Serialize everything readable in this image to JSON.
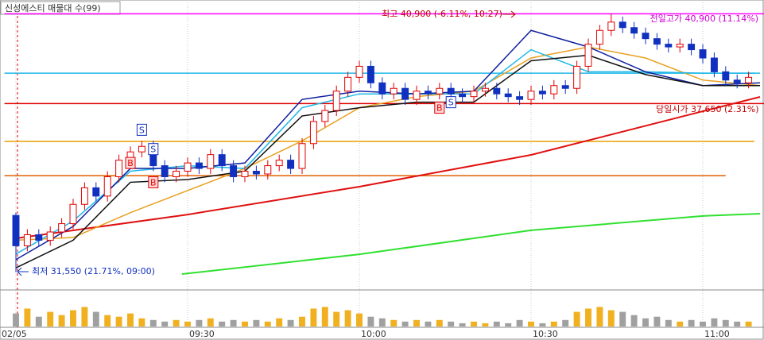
{
  "chart_data": {
    "type": "candlestick",
    "title": "신성에스티 매물대 수(99)",
    "annotations": [
      "최고 40,900 (-6.11%, 10:27)",
      "전일고가 40,900 (11.14%)",
      "당일시가 37,650 (2.31%)",
      "최저 31,550 (21.71%, 09:00)"
    ],
    "xlim": [
      -2,
      131
    ],
    "xticks": [
      {
        "value": 0,
        "label": "02/05"
      },
      {
        "value": 30,
        "label": "09:30"
      },
      {
        "value": 60,
        "label": "10:00"
      },
      {
        "value": 90,
        "label": "10:30"
      },
      {
        "value": 120,
        "label": "11:00"
      }
    ],
    "ylim": [
      30900,
      41400
    ],
    "x": [
      0,
      2,
      4,
      6,
      8,
      10,
      12,
      14,
      16,
      18,
      20,
      22,
      24,
      26,
      28,
      30,
      32,
      34,
      36,
      38,
      40,
      42,
      44,
      46,
      48,
      50,
      52,
      54,
      56,
      58,
      60,
      62,
      64,
      66,
      68,
      70,
      72,
      74,
      76,
      78,
      80,
      82,
      84,
      86,
      88,
      90,
      92,
      94,
      96,
      98,
      100,
      102,
      104,
      106,
      108,
      110,
      112,
      114,
      116,
      118,
      120,
      122,
      124,
      126,
      128
    ],
    "open": [
      33600,
      32500,
      32900,
      32700,
      33000,
      33300,
      34000,
      34600,
      34300,
      35000,
      35600,
      35900,
      36100,
      35400,
      35000,
      35200,
      35500,
      35300,
      35800,
      35400,
      35000,
      35200,
      35100,
      35400,
      35600,
      35300,
      36200,
      37000,
      37400,
      38100,
      38600,
      39000,
      38400,
      38000,
      38200,
      37800,
      38100,
      38000,
      38200,
      38000,
      37900,
      38100,
      38200,
      38000,
      37900,
      37800,
      38100,
      38000,
      38300,
      38200,
      39000,
      39800,
      40300,
      40600,
      40400,
      40200,
      40000,
      39800,
      39700,
      39800,
      39600,
      39300,
      38800,
      38500,
      38400
    ],
    "high": [
      33700,
      33100,
      33100,
      33200,
      33500,
      34200,
      34800,
      34800,
      35200,
      35800,
      36100,
      36300,
      36300,
      35600,
      35400,
      35700,
      35700,
      36000,
      36000,
      35600,
      35400,
      35400,
      35600,
      35800,
      35800,
      36400,
      37200,
      37600,
      38300,
      38800,
      39200,
      39200,
      38600,
      38400,
      38400,
      38300,
      38300,
      38400,
      38400,
      38200,
      38300,
      38400,
      38400,
      38200,
      38100,
      38300,
      38300,
      38500,
      38500,
      39200,
      40000,
      40500,
      40900,
      40800,
      40600,
      40400,
      40200,
      40000,
      40000,
      40000,
      39800,
      39500,
      39000,
      38700,
      38800
    ],
    "low": [
      31550,
      32300,
      32500,
      32500,
      32800,
      33100,
      33800,
      34100,
      34100,
      34800,
      35400,
      35700,
      35200,
      34800,
      34800,
      35000,
      35100,
      35100,
      35200,
      34800,
      34800,
      34900,
      34900,
      35200,
      35100,
      35100,
      36000,
      36800,
      37200,
      37900,
      38400,
      38200,
      37800,
      37800,
      37600,
      37600,
      37800,
      37800,
      37800,
      37700,
      37700,
      37900,
      37800,
      37700,
      37600,
      37600,
      37800,
      37800,
      38000,
      38000,
      38800,
      39600,
      40100,
      40200,
      40000,
      39800,
      39600,
      39500,
      39500,
      39400,
      39100,
      38600,
      38300,
      38200,
      38200
    ],
    "close": [
      32500,
      32900,
      32700,
      33000,
      33300,
      34000,
      34600,
      34300,
      35000,
      35600,
      35900,
      36100,
      35400,
      35000,
      35200,
      35500,
      35300,
      35800,
      35400,
      35000,
      35200,
      35100,
      35400,
      35600,
      35300,
      36200,
      37000,
      37400,
      38100,
      38600,
      39000,
      38400,
      38000,
      38200,
      37800,
      38100,
      38000,
      38200,
      38000,
      37900,
      38100,
      38200,
      38000,
      37900,
      37800,
      38100,
      38000,
      38300,
      38200,
      39000,
      39800,
      40300,
      40600,
      40400,
      40200,
      40000,
      39800,
      39700,
      39800,
      39600,
      39300,
      38800,
      38500,
      38400,
      38600
    ],
    "up_color": "#e00000",
    "down_color": "#1030c0",
    "series": [
      {
        "color": "#e01010",
        "x": [
          0,
          30,
          60,
          90,
          120,
          130
        ],
        "values": [
          32770,
          33630,
          34640,
          35790,
          37370,
          37890
        ]
      },
      {
        "color": "#30e030",
        "x": [
          29,
          60,
          90,
          120,
          130
        ],
        "values": [
          31475,
          32190,
          33060,
          33580,
          33660
        ]
      },
      {
        "color": "#e8a020",
        "x": [
          0,
          10,
          20,
          30,
          40,
          50,
          60,
          70,
          80,
          90,
          100,
          110,
          120,
          130
        ],
        "values": [
          32700,
          32800,
          33700,
          34500,
          35300,
          36300,
          37500,
          37900,
          38100,
          39300,
          39700,
          39300,
          38500,
          38300
        ]
      },
      {
        "color": "#20b8e8",
        "x": [
          0,
          10,
          20,
          30,
          40,
          50,
          60,
          70,
          80,
          90,
          100,
          110,
          120,
          130
        ],
        "values": [
          32200,
          33400,
          35200,
          35400,
          35300,
          37500,
          38000,
          38000,
          38000,
          39600,
          38800,
          38800,
          38750,
          38750
        ]
      },
      {
        "color": "#1020a0",
        "x": [
          0,
          10,
          20,
          30,
          40,
          50,
          60,
          70,
          80,
          90,
          100,
          110,
          120,
          130
        ],
        "values": [
          32000,
          33200,
          35300,
          35300,
          35500,
          37800,
          38100,
          38000,
          38100,
          40300,
          39700,
          38800,
          38300,
          38400
        ]
      },
      {
        "color": "#101010",
        "x": [
          0,
          10,
          20,
          30,
          40,
          50,
          60,
          70,
          80,
          90,
          100,
          110,
          120,
          130
        ],
        "values": [
          31700,
          32700,
          34800,
          34900,
          35200,
          37200,
          37500,
          37700,
          37700,
          39200,
          39400,
          38700,
          38300,
          38300
        ]
      }
    ],
    "levels": [
      {
        "value": 40900,
        "color": "#ff00ff",
        "to": 131
      },
      {
        "value": 38750,
        "color": "#20b8e8",
        "to": 129
      },
      {
        "value": 37650,
        "color": "#e00000",
        "to": 131
      },
      {
        "value": 36280,
        "color": "#e8a000",
        "to": 129
      },
      {
        "value": 35040,
        "color": "#e06000",
        "to": 124
      }
    ],
    "signals": [
      {
        "label": "S",
        "x": 22,
        "value": 36700
      },
      {
        "label": "B",
        "x": 20,
        "value": 35500
      },
      {
        "label": "S",
        "x": 24,
        "value": 36000
      },
      {
        "label": "B",
        "x": 24,
        "value": 34800
      },
      {
        "label": "B",
        "x": 74,
        "value": 37500
      },
      {
        "label": "S",
        "x": 76,
        "value": 37700
      }
    ],
    "volume": [
      40,
      55,
      30,
      45,
      35,
      50,
      60,
      45,
      35,
      30,
      40,
      25,
      20,
      15,
      20,
      15,
      20,
      25,
      15,
      20,
      15,
      20,
      15,
      25,
      20,
      30,
      55,
      60,
      45,
      50,
      40,
      30,
      25,
      20,
      15,
      20,
      15,
      20,
      15,
      10,
      15,
      10,
      15,
      10,
      20,
      15,
      10,
      15,
      20,
      45,
      55,
      60,
      50,
      45,
      35,
      25,
      30,
      20,
      15,
      20,
      15,
      25,
      20,
      15,
      15
    ],
    "volume_lim": [
      0,
      100
    ],
    "volume_colors": [
      "#f0b020",
      "#a0a0a0"
    ]
  }
}
